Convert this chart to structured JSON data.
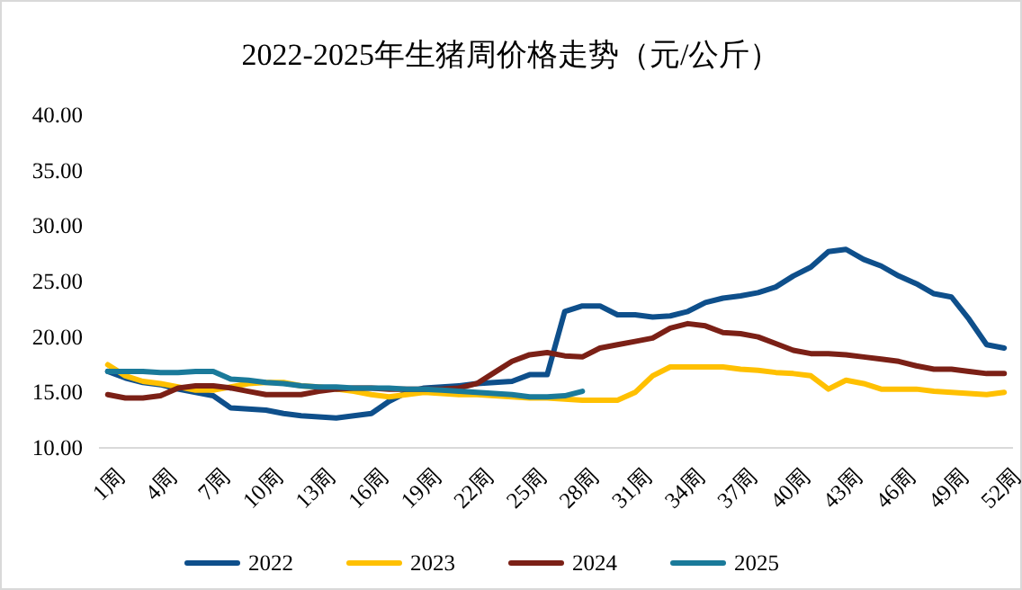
{
  "chart_data": {
    "type": "line",
    "title": "2022-2025年生猪周价格走势（元/公斤）",
    "categories": [
      "1周",
      null,
      null,
      "4周",
      null,
      null,
      "7周",
      null,
      null,
      "10周",
      null,
      null,
      "13周",
      null,
      null,
      "16周",
      null,
      null,
      "19周",
      null,
      null,
      "22周",
      null,
      null,
      "25周",
      null,
      null,
      "28周",
      null,
      null,
      "31周",
      null,
      null,
      "34周",
      null,
      null,
      "37周",
      null,
      null,
      "40周",
      null,
      null,
      "43周",
      null,
      null,
      "46周",
      null,
      null,
      "49周",
      null,
      null,
      "52周"
    ],
    "series": [
      {
        "name": "2022",
        "color": "#0e4f8b",
        "values": [
          16.9,
          16.3,
          15.9,
          15.7,
          15.3,
          15.0,
          14.7,
          13.6,
          13.5,
          13.4,
          13.1,
          12.9,
          12.8,
          12.7,
          12.9,
          13.1,
          14.2,
          15.0,
          15.4,
          15.5,
          15.6,
          15.8,
          15.9,
          16.0,
          16.6,
          16.6,
          22.3,
          22.8,
          22.8,
          22.0,
          22.0,
          21.8,
          21.9,
          22.3,
          23.1,
          23.5,
          23.7,
          24.0,
          24.5,
          25.5,
          26.3,
          27.7,
          27.9,
          27.0,
          26.4,
          25.5,
          24.8,
          23.9,
          23.6,
          21.6,
          19.3,
          19.0
        ]
      },
      {
        "name": "2023",
        "color": "#ffc000",
        "values": [
          17.5,
          16.5,
          16.0,
          15.8,
          15.5,
          15.2,
          15.2,
          15.5,
          15.8,
          15.9,
          15.9,
          15.6,
          15.5,
          15.3,
          15.1,
          14.8,
          14.6,
          14.8,
          15.0,
          14.9,
          14.8,
          14.8,
          14.7,
          14.6,
          14.5,
          14.5,
          14.4,
          14.3,
          14.3,
          14.3,
          15.0,
          16.5,
          17.3,
          17.3,
          17.3,
          17.3,
          17.1,
          17.0,
          16.8,
          16.7,
          16.5,
          15.3,
          16.1,
          15.8,
          15.3,
          15.3,
          15.3,
          15.1,
          15.0,
          14.9,
          14.8,
          15.0
        ]
      },
      {
        "name": "2024",
        "color": "#7b2016",
        "values": [
          14.8,
          14.5,
          14.5,
          14.7,
          15.4,
          15.6,
          15.6,
          15.4,
          15.1,
          14.8,
          14.8,
          14.8,
          15.1,
          15.3,
          15.4,
          15.4,
          15.3,
          15.3,
          15.3,
          15.3,
          15.4,
          15.8,
          16.8,
          17.8,
          18.4,
          18.6,
          18.3,
          18.2,
          19.0,
          19.3,
          19.6,
          19.9,
          20.8,
          21.2,
          21.0,
          20.4,
          20.3,
          20.0,
          19.4,
          18.8,
          18.5,
          18.5,
          18.4,
          18.2,
          18.0,
          17.8,
          17.4,
          17.1,
          17.1,
          16.9,
          16.7,
          16.7
        ]
      },
      {
        "name": "2025",
        "color": "#1a7a9a",
        "values": [
          16.9,
          16.9,
          16.9,
          16.8,
          16.8,
          16.9,
          16.9,
          16.2,
          16.1,
          15.9,
          15.8,
          15.6,
          15.5,
          15.5,
          15.4,
          15.4,
          15.4,
          15.3,
          15.3,
          15.2,
          15.1,
          15.0,
          14.9,
          14.8,
          14.6,
          14.6,
          14.7,
          15.1,
          null,
          null,
          null,
          null,
          null,
          null,
          null,
          null,
          null,
          null,
          null,
          null,
          null,
          null,
          null,
          null,
          null,
          null,
          null,
          null,
          null,
          null,
          null,
          null
        ]
      }
    ],
    "ylim": [
      10,
      40
    ],
    "yticks": [
      {
        "value": 10,
        "label": "10.00"
      },
      {
        "value": 15,
        "label": "15.00"
      },
      {
        "value": 20,
        "label": "20.00"
      },
      {
        "value": 25,
        "label": "25.00"
      },
      {
        "value": 30,
        "label": "30.00"
      },
      {
        "value": 35,
        "label": "35.00"
      },
      {
        "value": 40,
        "label": "40.00"
      }
    ],
    "grid": false,
    "legend": "bottom"
  }
}
